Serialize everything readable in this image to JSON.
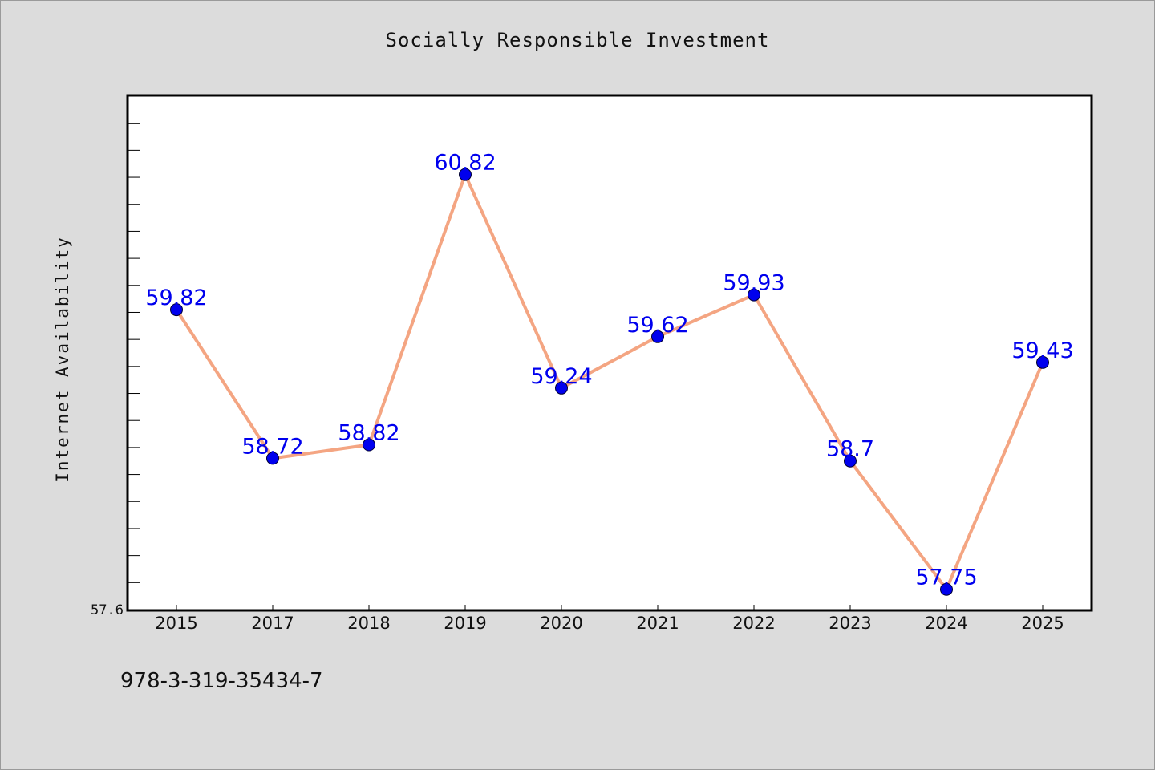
{
  "chart_data": {
    "type": "line",
    "title": "Socially Responsible Investment",
    "xlabel": "",
    "ylabel": "Internet Availability",
    "categories": [
      "2015",
      "2017",
      "2018",
      "2019",
      "2020",
      "2021",
      "2022",
      "2023",
      "2024",
      "2025"
    ],
    "series": [
      {
        "values": [
          59.82,
          58.72,
          58.82,
          60.82,
          59.24,
          59.62,
          59.93,
          58.7,
          57.75,
          59.43
        ]
      }
    ],
    "data_labels": [
      "59.82",
      "58.72",
      "58.82",
      "60.82",
      "59.24",
      "59.62",
      "59.93",
      "58.7",
      "57.75",
      "59.43"
    ],
    "ylim": [
      57.6,
      61.4
    ],
    "y_tick_labels": [
      {
        "value": 57.6,
        "label": "57.6"
      }
    ],
    "y_minor_tick_step": 0.2,
    "grid": false,
    "line_color": "#f4a582",
    "marker_color": "#0000ee",
    "label_color": "#0000ee"
  },
  "footer": {
    "code": "978-3-319-35434-7"
  }
}
